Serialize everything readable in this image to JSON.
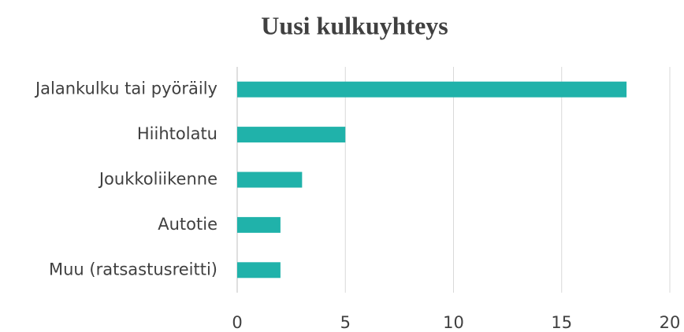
{
  "chart_data": {
    "type": "barh",
    "title": "Uusi kulkuyhteys",
    "categories": [
      "Jalankulku tai pyöräily",
      "Hiihtolatu",
      "Joukkoliikenne",
      "Autotie",
      "Muu (ratsastusreitti)"
    ],
    "values": [
      18,
      5,
      3,
      2,
      2
    ],
    "color": "#20b2aa",
    "xlim": [
      0,
      20
    ],
    "xticks": [
      0,
      5,
      10,
      15,
      20
    ],
    "grid": true
  }
}
